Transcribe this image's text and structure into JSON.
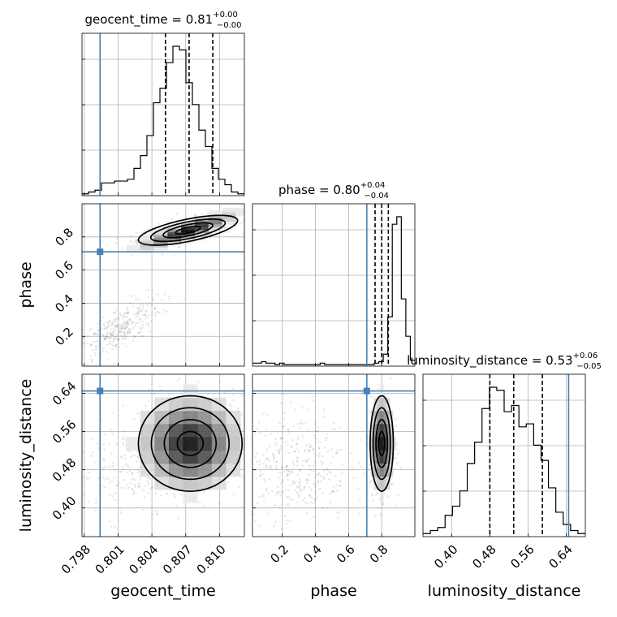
{
  "chart_data": {
    "type": "corner",
    "parameters": [
      "geocent_time",
      "phase",
      "luminosity_distance"
    ],
    "titles": [
      {
        "prefix": "geocent_time = ",
        "median": "0.81",
        "plus": "+0.00",
        "minus": "−0.00"
      },
      {
        "prefix": "phase = ",
        "median": "0.80",
        "plus": "+0.04",
        "minus": "−0.04"
      },
      {
        "prefix": "luminosity_distance = ",
        "median": "0.53",
        "plus": "+0.06",
        "minus": "−0.05"
      }
    ],
    "ranges": {
      "geocent_time": [
        0.7978,
        0.8122
      ],
      "phase": [
        0.02,
        1.0
      ],
      "luminosity_distance": [
        0.34,
        0.68
      ]
    },
    "ticks": {
      "geocent_time": [
        0.798,
        0.801,
        0.804,
        0.807,
        0.81
      ],
      "geocent_time_labels": [
        "0.798",
        "0.801",
        "0.804",
        "0.807",
        "0.810"
      ],
      "phase": [
        0.2,
        0.4,
        0.6,
        0.8
      ],
      "phase_labels": [
        "0.2",
        "0.4",
        "0.6",
        "0.8"
      ],
      "luminosity_distance": [
        0.4,
        0.48,
        0.56,
        0.64
      ],
      "luminosity_distance_labels": [
        "0.40",
        "0.48",
        "0.56",
        "0.64"
      ]
    },
    "truths": {
      "geocent_time": 0.7994,
      "phase": 0.71,
      "luminosity_distance": 0.645
    },
    "quantiles": {
      "geocent_time": [
        0.8052,
        0.8073,
        0.8094
      ],
      "phase": [
        0.76,
        0.8,
        0.84
      ],
      "luminosity_distance": [
        0.48,
        0.53,
        0.59
      ]
    },
    "histograms": {
      "geocent_time": {
        "edges_start": 0.7978,
        "edges_end": 0.8122,
        "counts": [
          1,
          2,
          3,
          7,
          7,
          8,
          8,
          9,
          15,
          22,
          33,
          51,
          59,
          73,
          82,
          80,
          62,
          50,
          36,
          27,
          15,
          9,
          6,
          2,
          1
        ]
      },
      "phase": {
        "edges_start": 0.02,
        "edges_end": 1.0,
        "counts": [
          2,
          2,
          3,
          2,
          2,
          1,
          2,
          1,
          1,
          1,
          1,
          1,
          1,
          1,
          1,
          2,
          1,
          1,
          1,
          1,
          1,
          1,
          1,
          1,
          1,
          1,
          1,
          2,
          3,
          8,
          33,
          95,
          100,
          45,
          20,
          4
        ]
      },
      "luminosity_distance": {
        "edges_start": 0.34,
        "edges_end": 0.68,
        "counts": [
          1,
          2,
          3,
          7,
          10,
          15,
          24,
          31,
          42,
          49,
          48,
          41,
          43,
          36,
          37,
          30,
          25,
          16,
          8,
          4,
          2,
          1
        ]
      }
    },
    "clusters": {
      "geocent_time_vs_phase": [
        {
          "cx": 0.8072,
          "cy": 0.84,
          "sx": 0.0022,
          "sy": 0.045,
          "rho": 0.65,
          "n": 600
        },
        {
          "cx": 0.801,
          "cy": 0.24,
          "sx": 0.0019,
          "sy": 0.1,
          "rho": 0.75,
          "n": 300
        }
      ],
      "geocent_time_vs_luminosity_distance": [
        {
          "cx": 0.8074,
          "cy": 0.535,
          "sx": 0.0023,
          "sy": 0.05,
          "rho": 0.0,
          "n": 700
        },
        {
          "cx": 0.8015,
          "cy": 0.48,
          "sx": 0.0022,
          "sy": 0.05,
          "rho": 0.0,
          "n": 150
        }
      ],
      "phase_vs_luminosity_distance": [
        {
          "cx": 0.8,
          "cy": 0.535,
          "sx": 0.035,
          "sy": 0.05,
          "rho": 0.0,
          "n": 500
        },
        {
          "cx": 0.28,
          "cy": 0.49,
          "sx": 0.16,
          "sy": 0.06,
          "rho": 0.0,
          "n": 350
        }
      ]
    },
    "contour_levels": [
      "0.5",
      "1.0",
      "1.5",
      "2.0"
    ],
    "colors": {
      "truth": "#4682b4",
      "ink": "#000000",
      "grid": "#b0b0b0"
    }
  }
}
